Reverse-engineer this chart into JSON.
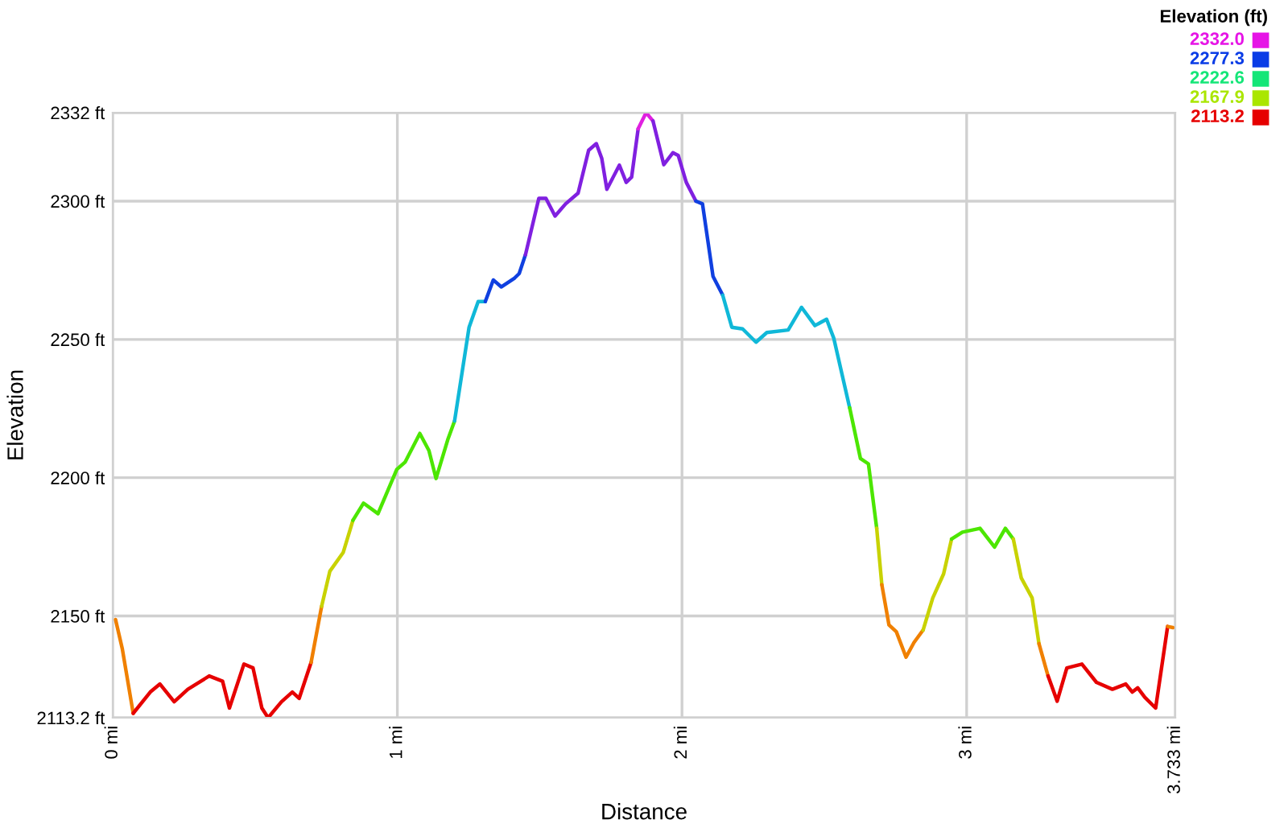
{
  "chart_data": {
    "type": "line",
    "xlabel": "Distance",
    "ylabel": "Elevation",
    "clabel": "Elevation (ft)",
    "cticks": [
      {
        "value": 2332.0,
        "label": "2332.0"
      },
      {
        "value": 2277.3,
        "label": "2277.3"
      },
      {
        "value": 2222.6,
        "label": "2222.6"
      },
      {
        "value": 2167.9,
        "label": "2167.9"
      },
      {
        "value": 2113.2,
        "label": "2113.2"
      }
    ],
    "colors": [
      "#e614e6",
      "#0a3ce6",
      "#14e678",
      "#aae600",
      "#e60000"
    ],
    "xlim": [
      0,
      3.733
    ],
    "xticks": [
      {
        "value": 0,
        "label": "0 mi"
      },
      {
        "value": 1,
        "label": "1 mi"
      },
      {
        "value": 2,
        "label": "2 mi"
      },
      {
        "value": 3,
        "label": "3 mi"
      },
      {
        "value": 3.733,
        "label": "3.733 mi"
      }
    ],
    "ylim": [
      2113.2,
      2332
    ],
    "yticks": [
      {
        "value": 2113.2,
        "label": "2113.2 ft"
      },
      {
        "value": 2150,
        "label": "2150 ft"
      },
      {
        "value": 2200,
        "label": "2200 ft"
      },
      {
        "value": 2250,
        "label": "2250 ft"
      },
      {
        "value": 2300,
        "label": "2300 ft"
      },
      {
        "value": 2332,
        "label": "2332 ft"
      }
    ],
    "grid": true,
    "series": [
      {
        "color": "#f08000",
        "x": [
          0.01,
          0.034,
          0.072
        ],
        "values": [
          2148.7,
          2138,
          2114.8
        ]
      },
      {
        "color": "#e60000",
        "x": [
          0.072,
          0.132,
          0.166,
          0.216,
          0.264,
          0.339,
          0.386,
          0.41,
          0.461,
          0.493,
          0.524,
          0.546,
          0.593,
          0.631,
          0.655,
          0.697
        ],
        "values": [
          2114.8,
          2122.5,
          2125.4,
          2119,
          2123.5,
          2128.3,
          2126.4,
          2116.7,
          2132.6,
          2131.2,
          2116.7,
          2113.2,
          2119,
          2122.5,
          2120.2,
          2133.2
        ]
      },
      {
        "color": "#f08000",
        "x": [
          0.697,
          0.734
        ],
        "values": [
          2133.2,
          2153.5
        ]
      },
      {
        "color": "#c8d200",
        "x": [
          0.734,
          0.763,
          0.81,
          0.844
        ],
        "values": [
          2153.5,
          2166.2,
          2173,
          2184.6
        ]
      },
      {
        "color": "#4ce600",
        "x": [
          0.844,
          0.881,
          0.932,
          0.998,
          1.027,
          1.079,
          1.111,
          1.136,
          1.177,
          1.201
        ],
        "values": [
          2184.6,
          2190.8,
          2187,
          2203,
          2205.6,
          2216,
          2209.8,
          2199.7,
          2213.7,
          2220.5
        ]
      },
      {
        "color": "#10b8d8",
        "x": [
          1.201,
          1.252,
          1.284,
          1.309
        ],
        "values": [
          2220.5,
          2254.4,
          2263.7,
          2263.7
        ]
      },
      {
        "color": "#1040e0",
        "x": [
          1.309,
          1.337,
          1.365,
          1.412,
          1.428,
          1.45
        ],
        "values": [
          2263.7,
          2271.5,
          2269,
          2272.2,
          2273.8,
          2280.6
        ]
      },
      {
        "color": "#8020e0",
        "x": [
          1.45,
          1.497,
          1.522,
          1.554,
          1.591,
          1.635,
          1.672,
          1.699,
          1.718,
          1.736,
          1.78,
          1.804,
          1.823,
          1.846
        ],
        "values": [
          2280.6,
          2301,
          2301,
          2294.6,
          2299,
          2302.9,
          2318.4,
          2320.8,
          2315.5,
          2304.3,
          2313,
          2306.8,
          2308.7,
          2326.2
        ]
      },
      {
        "color": "#e020e0",
        "x": [
          1.846,
          1.874,
          1.898
        ],
        "values": [
          2326.2,
          2332,
          2329
        ]
      },
      {
        "color": "#8020e0",
        "x": [
          1.898,
          1.936,
          1.968,
          1.987,
          2.015,
          2.049
        ],
        "values": [
          2329,
          2313.2,
          2317.5,
          2316.5,
          2306.8,
          2300
        ]
      },
      {
        "color": "#1040e0",
        "x": [
          2.049,
          2.072,
          2.109,
          2.143
        ],
        "values": [
          2300,
          2299,
          2272.8,
          2266
        ]
      },
      {
        "color": "#10b8d8",
        "x": [
          2.143,
          2.175,
          2.213,
          2.26,
          2.298,
          2.373,
          2.42,
          2.467,
          2.508,
          2.533,
          2.589
        ],
        "values": [
          2266,
          2254.4,
          2253.8,
          2249,
          2252.5,
          2253.4,
          2261.6,
          2255,
          2257.3,
          2250.5,
          2225.3
        ]
      },
      {
        "color": "#4ce600",
        "x": [
          2.589,
          2.627,
          2.655,
          2.684
        ],
        "values": [
          2225.3,
          2206.9,
          2205,
          2181.7
        ]
      },
      {
        "color": "#c8d200",
        "x": [
          2.684,
          2.702
        ],
        "values": [
          2181.7,
          2161.3
        ]
      },
      {
        "color": "#f08000",
        "x": [
          2.702,
          2.727,
          2.753,
          2.787,
          2.815,
          2.847
        ],
        "values": [
          2161.3,
          2146.8,
          2144.3,
          2135.1,
          2140.4,
          2144.9
        ]
      },
      {
        "color": "#c8d200",
        "x": [
          2.847,
          2.881,
          2.919,
          2.947
        ],
        "values": [
          2144.9,
          2156.5,
          2165.2,
          2177.8
        ]
      },
      {
        "color": "#4ce600",
        "x": [
          2.947,
          2.985,
          3.047,
          3.098,
          3.136,
          3.164
        ],
        "values": [
          2177.8,
          2180.3,
          2181.7,
          2174.9,
          2181.7,
          2177.8
        ]
      },
      {
        "color": "#c8d200",
        "x": [
          3.164,
          3.192,
          3.23,
          3.254
        ],
        "values": [
          2177.8,
          2163.7,
          2156.5,
          2140
        ]
      },
      {
        "color": "#f08000",
        "x": [
          3.254,
          3.286
        ],
        "values": [
          2140,
          2128.3
        ]
      },
      {
        "color": "#e60000",
        "x": [
          3.286,
          3.318,
          3.352,
          3.405,
          3.456,
          3.512,
          3.559,
          3.582,
          3.601,
          3.626,
          3.664,
          3.706
        ],
        "values": [
          2128.3,
          2119.2,
          2131.2,
          2132.6,
          2126,
          2123.5,
          2125.4,
          2122.5,
          2124,
          2120.6,
          2116.7,
          2146.2
        ]
      },
      {
        "color": "#f08000",
        "x": [
          3.706,
          3.725
        ],
        "values": [
          2146.2,
          2145.8
        ]
      }
    ]
  }
}
